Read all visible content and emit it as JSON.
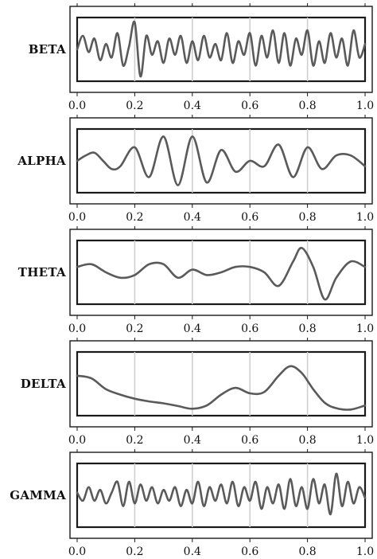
{
  "chart_data": [
    {
      "type": "line",
      "name": "BETA",
      "xlim": [
        0.0,
        1.0
      ],
      "xticks": [
        "0.0",
        "0.2",
        "0.4",
        "0.6",
        "0.8",
        "1.0"
      ],
      "grid": "vertical",
      "series": [
        {
          "name": "BETA",
          "x": [
            0.0,
            0.02,
            0.04,
            0.06,
            0.08,
            0.1,
            0.12,
            0.14,
            0.16,
            0.18,
            0.2,
            0.22,
            0.24,
            0.26,
            0.28,
            0.3,
            0.32,
            0.34,
            0.36,
            0.38,
            0.4,
            0.42,
            0.44,
            0.46,
            0.48,
            0.5,
            0.52,
            0.54,
            0.56,
            0.58,
            0.6,
            0.62,
            0.64,
            0.66,
            0.68,
            0.7,
            0.72,
            0.74,
            0.76,
            0.78,
            0.8,
            0.82,
            0.84,
            0.86,
            0.88,
            0.9,
            0.92,
            0.94,
            0.96,
            0.98,
            1.0
          ],
          "y": [
            0.0,
            0.5,
            -0.1,
            0.4,
            -0.4,
            0.2,
            -0.3,
            0.6,
            -0.6,
            0.1,
            1.0,
            -1.0,
            0.5,
            -0.2,
            0.3,
            -0.5,
            0.4,
            -0.2,
            0.5,
            -0.5,
            0.3,
            -0.4,
            0.5,
            -0.3,
            0.2,
            -0.4,
            0.6,
            -0.5,
            0.3,
            -0.2,
            0.6,
            -0.6,
            0.5,
            -0.3,
            0.7,
            -0.5,
            0.6,
            -0.6,
            0.4,
            -0.2,
            0.7,
            -0.6,
            0.3,
            -0.5,
            0.6,
            -0.3,
            0.4,
            -0.6,
            0.7,
            -0.3,
            0.2
          ]
        }
      ]
    },
    {
      "type": "line",
      "name": "ALPHA",
      "xlim": [
        0.0,
        1.0
      ],
      "xticks": [
        "0.0",
        "0.2",
        "0.4",
        "0.6",
        "0.8",
        "1.0"
      ],
      "grid": "vertical",
      "series": [
        {
          "name": "ALPHA",
          "x": [
            0.0,
            0.03,
            0.06,
            0.09,
            0.12,
            0.15,
            0.2,
            0.25,
            0.3,
            0.35,
            0.4,
            0.45,
            0.5,
            0.55,
            0.6,
            0.65,
            0.7,
            0.75,
            0.8,
            0.85,
            0.9,
            0.95,
            1.0
          ],
          "y": [
            0.0,
            0.2,
            0.3,
            0.0,
            -0.3,
            -0.2,
            0.5,
            -0.6,
            0.9,
            -0.9,
            0.9,
            -0.8,
            0.4,
            -0.4,
            0.0,
            -0.2,
            0.6,
            -0.6,
            0.5,
            -0.3,
            0.2,
            0.2,
            -0.2
          ]
        }
      ]
    },
    {
      "type": "line",
      "name": "THETA",
      "xlim": [
        0.0,
        1.0
      ],
      "xticks": [
        "0.0",
        "0.2",
        "0.4",
        "0.6",
        "0.8",
        "1.0"
      ],
      "grid": "vertical",
      "series": [
        {
          "name": "THETA",
          "x": [
            0.0,
            0.05,
            0.1,
            0.15,
            0.2,
            0.25,
            0.3,
            0.35,
            0.4,
            0.45,
            0.5,
            0.55,
            0.6,
            0.65,
            0.7,
            0.75,
            0.78,
            0.82,
            0.86,
            0.9,
            0.95,
            1.0
          ],
          "y": [
            0.2,
            0.3,
            0.0,
            -0.2,
            -0.1,
            0.3,
            0.3,
            -0.2,
            0.1,
            -0.1,
            0.0,
            0.2,
            0.2,
            0.0,
            -0.5,
            0.4,
            0.9,
            0.2,
            -1.0,
            -0.2,
            0.4,
            0.2
          ]
        }
      ]
    },
    {
      "type": "line",
      "name": "DELTA",
      "xlim": [
        0.0,
        1.0
      ],
      "xticks": [
        "0.0",
        "0.2",
        "0.4",
        "0.6",
        "0.8",
        "1.0"
      ],
      "grid": "vertical",
      "series": [
        {
          "name": "DELTA",
          "x": [
            0.0,
            0.05,
            0.1,
            0.15,
            0.2,
            0.25,
            0.3,
            0.35,
            0.4,
            0.45,
            0.5,
            0.55,
            0.6,
            0.65,
            0.7,
            0.74,
            0.78,
            0.82,
            0.86,
            0.9,
            0.95,
            1.0
          ],
          "y": [
            0.3,
            0.2,
            -0.2,
            -0.4,
            -0.55,
            -0.65,
            -0.72,
            -0.82,
            -0.92,
            -0.8,
            -0.4,
            -0.15,
            -0.35,
            -0.3,
            0.3,
            0.65,
            0.4,
            -0.2,
            -0.7,
            -0.9,
            -0.95,
            -0.8
          ]
        }
      ]
    },
    {
      "type": "line",
      "name": "GAMMA",
      "xlim": [
        0.0,
        1.0
      ],
      "xticks": [
        "0.0",
        "0.2",
        "0.4",
        "0.6",
        "0.8",
        "1.0"
      ],
      "grid": "vertical",
      "series": [
        {
          "name": "GAMMA",
          "x": [
            0.0,
            0.02,
            0.04,
            0.06,
            0.08,
            0.1,
            0.12,
            0.14,
            0.16,
            0.18,
            0.2,
            0.22,
            0.24,
            0.26,
            0.28,
            0.3,
            0.32,
            0.34,
            0.36,
            0.38,
            0.4,
            0.42,
            0.44,
            0.46,
            0.48,
            0.5,
            0.52,
            0.54,
            0.56,
            0.58,
            0.6,
            0.62,
            0.64,
            0.66,
            0.68,
            0.7,
            0.72,
            0.74,
            0.76,
            0.78,
            0.8,
            0.82,
            0.84,
            0.86,
            0.88,
            0.9,
            0.92,
            0.94,
            0.96,
            0.98,
            1.0
          ],
          "y": [
            0.1,
            -0.2,
            0.3,
            -0.2,
            0.2,
            -0.3,
            0.1,
            0.5,
            -0.4,
            0.5,
            -0.3,
            0.4,
            -0.2,
            0.3,
            -0.3,
            0.2,
            -0.2,
            0.3,
            -0.4,
            0.2,
            -0.3,
            0.5,
            -0.4,
            0.3,
            -0.2,
            0.4,
            -0.3,
            0.5,
            -0.4,
            0.3,
            -0.2,
            0.5,
            -0.5,
            0.3,
            -0.3,
            0.4,
            -0.5,
            0.6,
            -0.4,
            0.3,
            -0.5,
            0.6,
            -0.3,
            0.4,
            -0.7,
            0.8,
            -0.4,
            0.5,
            -0.3,
            0.3,
            -0.1
          ]
        }
      ]
    }
  ]
}
